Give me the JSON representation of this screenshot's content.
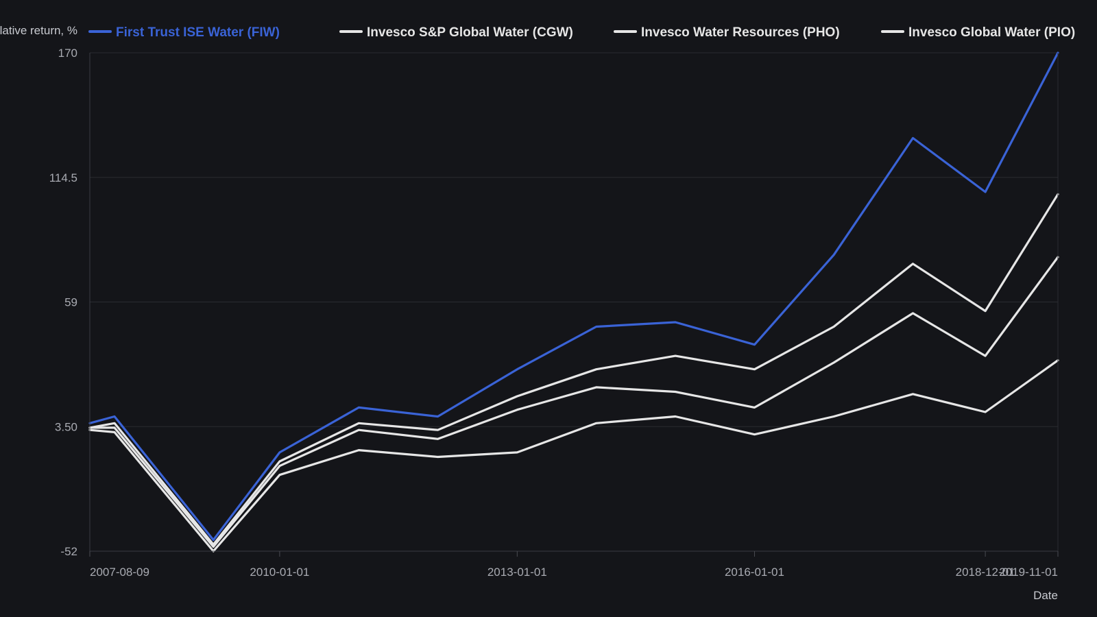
{
  "chart_data": {
    "type": "line",
    "ylabel": "Cumulative return, %",
    "xlabel": "Date",
    "ylim": [
      -52,
      170
    ],
    "y_ticks": [
      "170",
      "114.5",
      "59",
      "3.50",
      "-52"
    ],
    "x_ticks": [
      "2007-08-09",
      "2010-01-01",
      "2013-01-01",
      "2016-01-01",
      "2018-12-01",
      "2019-11-01"
    ],
    "grid": true,
    "legend_position": "top",
    "x": [
      "2007-08-09",
      "2007-12-01",
      "2009-03-01",
      "2010-01-01",
      "2011-01-01",
      "2012-01-01",
      "2013-01-01",
      "2014-01-01",
      "2015-01-01",
      "2016-01-01",
      "2017-01-01",
      "2018-01-01",
      "2018-12-01",
      "2019-11-01"
    ],
    "series": [
      {
        "name": "First Trust ISE Water (FIW)",
        "color": "#3a63d6",
        "values": [
          5,
          8,
          -47,
          -8,
          12,
          8,
          29,
          48,
          50,
          40,
          80,
          132,
          108,
          170
        ]
      },
      {
        "name": "Invesco S&P Global Water (CGW)",
        "color": "#e6e6e6",
        "values": [
          3,
          5,
          -49,
          -12,
          5,
          2,
          17,
          29,
          35,
          29,
          48,
          76,
          55,
          107
        ]
      },
      {
        "name": "Invesco Water Resources (PHO)",
        "color": "#e6e6e6",
        "values": [
          3,
          3,
          -50,
          -14,
          2,
          -2,
          11,
          21,
          19,
          12,
          32,
          54,
          35,
          79
        ]
      },
      {
        "name": "Invesco Global Water (PIO)",
        "color": "#e6e6e6",
        "values": [
          2,
          1,
          -52,
          -18,
          -7,
          -10,
          -8,
          5,
          8,
          0,
          8,
          18,
          10,
          33
        ]
      }
    ]
  }
}
